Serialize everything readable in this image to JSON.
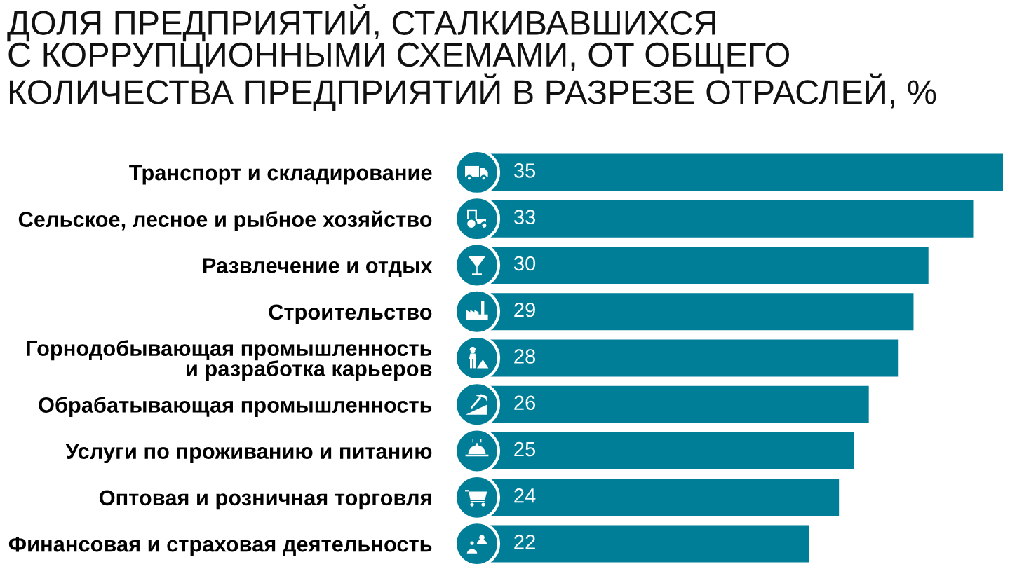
{
  "chart_data": {
    "type": "bar",
    "orientation": "horizontal",
    "title": "ДОЛЯ ПРЕДПРИЯТИЙ, СТАЛКИВАВШИХСЯ\nС КОРРУПЦИОННЫМИ СХЕМАМИ, ОТ ОБЩЕГО\nКОЛИЧЕСТВА ПРЕДПРИЯТИЙ В РАЗРЕЗЕ ОТРАСЛЕЙ, %",
    "categories": [
      "Транспорт и складирование",
      "Сельское, лесное и рыбное хозяйство",
      "Развлечение и отдых",
      "Строительство",
      "Горнодобывающая промышленность\nи разработка карьеров",
      "Обрабатывающая промышленность",
      "Услуги по проживанию и питанию",
      "Оптовая и розничная торговля",
      "Финансовая и страховая деятельность"
    ],
    "values": [
      35,
      33,
      30,
      29,
      28,
      26,
      25,
      24,
      22
    ],
    "color": "#007e98",
    "xlim": [
      0,
      35
    ],
    "data_labels": true,
    "tick_labels": "y"
  }
}
